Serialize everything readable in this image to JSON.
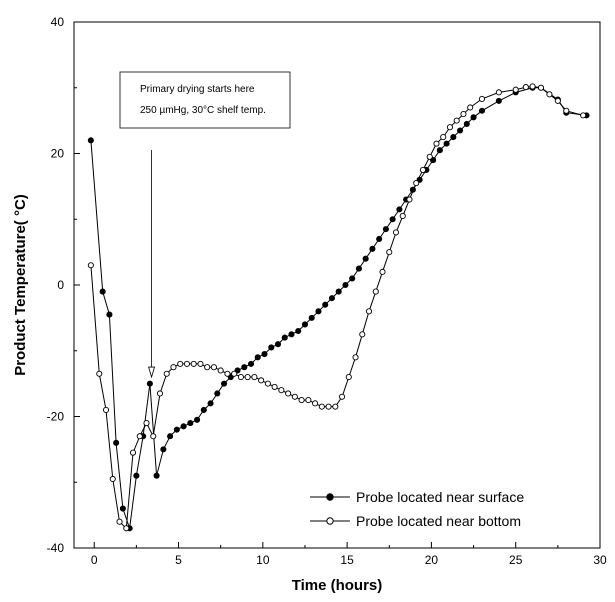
{
  "chart_data": {
    "type": "line",
    "xlabel": "Time (hours)",
    "ylabel": "Product Temperature( °C)",
    "xlim": [
      -1.2,
      30
    ],
    "ylim": [
      -40,
      40
    ],
    "xticks": [
      0,
      5,
      10,
      15,
      20,
      25,
      30
    ],
    "yticks": [
      -40,
      -20,
      0,
      20,
      40
    ],
    "grid": false,
    "legend_position": "bottom-right",
    "annotation": {
      "line1": "Primary drying starts here",
      "line2": "250 µmHg, 30°C shelf temp.",
      "arrow_x": 3.4,
      "arrow_y": -14
    },
    "series": [
      {
        "name": "Probe located near surface",
        "marker": "filled-circle",
        "color": "#000000",
        "x": [
          -0.2,
          0.5,
          0.9,
          1.3,
          1.7,
          2.1,
          2.5,
          2.9,
          3.3,
          3.7,
          4.1,
          4.5,
          4.9,
          5.3,
          5.7,
          6.1,
          6.5,
          6.9,
          7.3,
          7.7,
          8.1,
          8.5,
          8.9,
          9.3,
          9.7,
          10.1,
          10.5,
          10.9,
          11.3,
          11.7,
          12.1,
          12.5,
          12.9,
          13.3,
          13.7,
          14.1,
          14.5,
          14.9,
          15.3,
          15.7,
          16.1,
          16.5,
          16.9,
          17.3,
          17.7,
          18.1,
          18.5,
          18.9,
          19.3,
          19.7,
          20.1,
          20.5,
          20.9,
          21.3,
          21.7,
          22.1,
          22.5,
          23,
          24,
          25,
          26,
          26.5,
          27.5,
          28,
          29.2
        ],
        "y": [
          22,
          -1,
          -4.5,
          -24,
          -34,
          -37,
          -29,
          -23,
          -15,
          -29,
          -25,
          -23,
          -22,
          -21.5,
          -21,
          -20.5,
          -19,
          -18,
          -16.5,
          -15,
          -14,
          -13,
          -12.5,
          -12,
          -11,
          -10.5,
          -9.5,
          -9,
          -8,
          -7.5,
          -7,
          -6,
          -5,
          -4,
          -3,
          -2,
          -1,
          0,
          1,
          2.5,
          4,
          5.5,
          7,
          8.5,
          10,
          11.5,
          13,
          14.5,
          16,
          17.5,
          19,
          20.5,
          21.5,
          22.5,
          23.5,
          24.5,
          25.5,
          26.5,
          28,
          29.3,
          30,
          30,
          28.2,
          26.2,
          25.8
        ]
      },
      {
        "name": "Probe located near bottom",
        "marker": "open-circle",
        "color": "#000000",
        "x": [
          -0.2,
          0.3,
          0.7,
          1.1,
          1.5,
          1.9,
          2.3,
          2.7,
          3.1,
          3.5,
          3.9,
          4.3,
          4.7,
          5.1,
          5.5,
          5.9,
          6.3,
          6.7,
          7.1,
          7.5,
          7.9,
          8.3,
          8.7,
          9.1,
          9.5,
          9.9,
          10.3,
          10.7,
          11.1,
          11.5,
          11.9,
          12.3,
          12.7,
          13.1,
          13.5,
          13.9,
          14.3,
          14.7,
          15.1,
          15.5,
          15.9,
          16.3,
          16.7,
          17.1,
          17.5,
          17.9,
          18.3,
          18.7,
          19.1,
          19.5,
          19.9,
          20.3,
          20.7,
          21.1,
          21.5,
          21.9,
          22.3,
          23,
          24,
          25,
          25.6,
          26,
          26.5,
          27,
          27.5,
          28,
          29
        ],
        "y": [
          3,
          -13.5,
          -19,
          -29.5,
          -36,
          -37,
          -25.5,
          -23,
          -21,
          -23,
          -16.5,
          -13.5,
          -12.5,
          -12,
          -12,
          -12,
          -12,
          -12.5,
          -12.5,
          -13,
          -13.5,
          -13.5,
          -14,
          -14,
          -14,
          -14.5,
          -15,
          -15.5,
          -16,
          -16.5,
          -17,
          -17.5,
          -17.5,
          -18,
          -18.5,
          -18.5,
          -18.5,
          -17,
          -14,
          -11,
          -7.5,
          -4,
          -1,
          2,
          5,
          8,
          10.5,
          13,
          15.5,
          17.5,
          19.5,
          21.5,
          22.5,
          24,
          25,
          26,
          27,
          28.3,
          29.3,
          29.7,
          30.1,
          30.2,
          30,
          29,
          28,
          26.5,
          25.8
        ]
      }
    ]
  }
}
